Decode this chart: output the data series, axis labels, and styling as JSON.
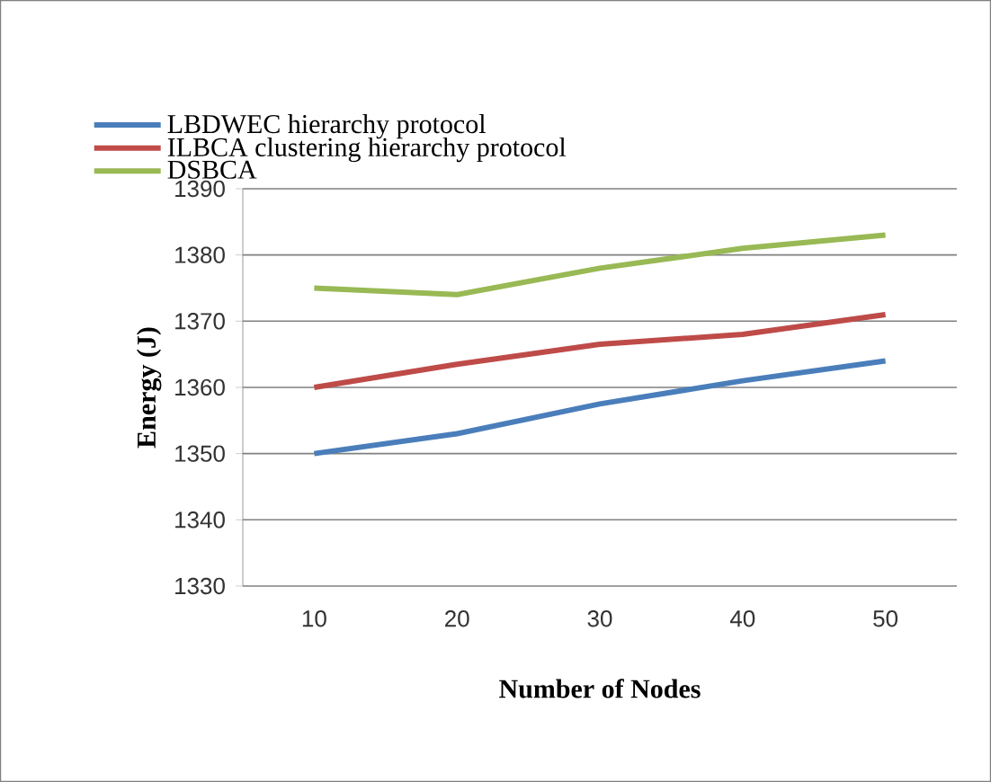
{
  "chart_data": {
    "type": "line",
    "xlabel": "Number  of Nodes",
    "ylabel": "Energy (J)",
    "categories": [
      "10",
      "20",
      "30",
      "40",
      "50"
    ],
    "series": [
      {
        "name": "LBDWEC hierarchy protocol",
        "color": "#4a7ebb",
        "values": [
          1350,
          1353,
          1357.5,
          1361,
          1364
        ]
      },
      {
        "name": "ILBCA clustering hierarchy protocol",
        "color": "#be4b48",
        "values": [
          1360,
          1363.5,
          1366.5,
          1368,
          1371
        ]
      },
      {
        "name": "DSBCA",
        "color": "#98b954",
        "values": [
          1375,
          1374,
          1378,
          1381,
          1383
        ]
      }
    ],
    "ylim": [
      1330,
      1390
    ],
    "yticks": [
      1330,
      1340,
      1350,
      1360,
      1370,
      1380,
      1390
    ],
    "grid": "y",
    "legend": "top",
    "marker": "none",
    "line_style": "solid"
  }
}
